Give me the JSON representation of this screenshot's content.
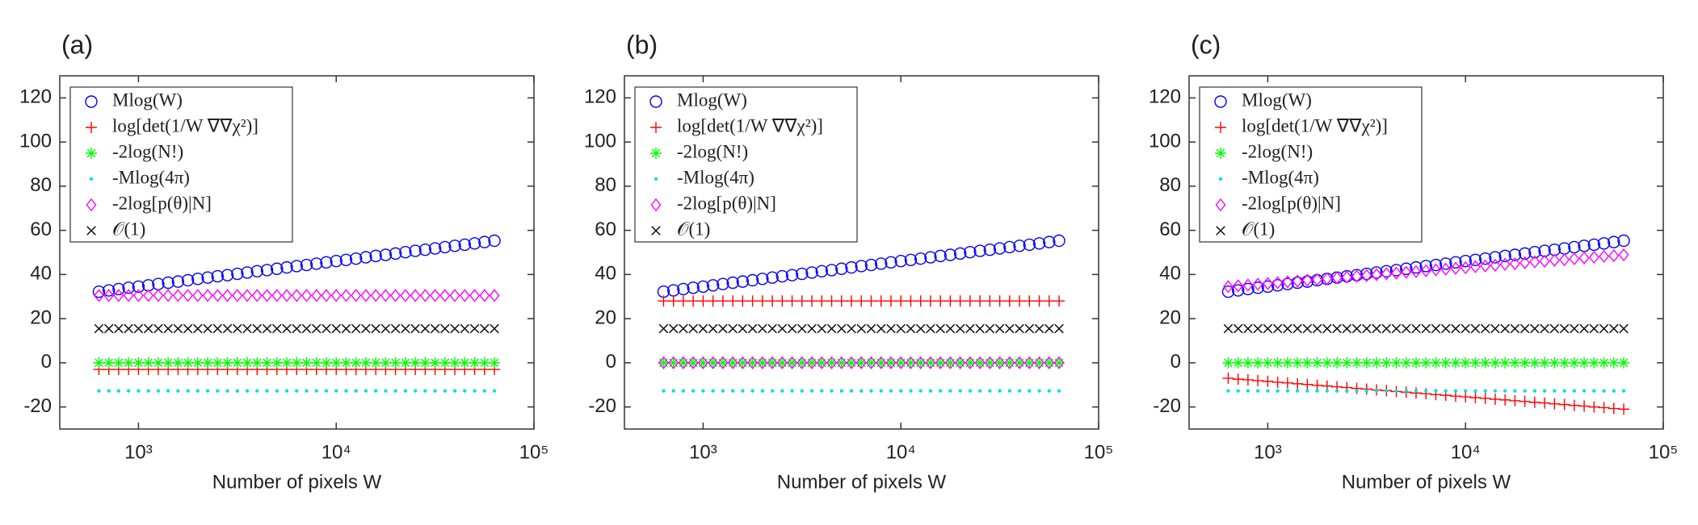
{
  "chart_data": [
    {
      "type": "scatter",
      "title": "(a)",
      "xlabel": "Number of pixels W",
      "xscale": "log",
      "legend": "upper left",
      "xlim": [
        400,
        100000
      ],
      "ylim": [
        -30,
        130
      ],
      "xticks": [
        {
          "value": 1000,
          "label": "10³"
        },
        {
          "value": 10000,
          "label": "10⁴"
        },
        {
          "value": 100000,
          "label": "10⁵"
        }
      ],
      "yticks": [
        -20,
        0,
        20,
        40,
        60,
        80,
        100,
        120
      ],
      "x": [
        631,
        708,
        794,
        891,
        1000,
        1122,
        1259,
        1413,
        1585,
        1778,
        1995,
        2239,
        2512,
        2818,
        3162,
        3548,
        3981,
        4467,
        5012,
        5623,
        6310,
        7079,
        7943,
        8913,
        10000,
        11220,
        12589,
        14125,
        15849,
        17783,
        19953,
        22387,
        25119,
        28184,
        31623,
        35481,
        39811,
        44668,
        50119,
        56234,
        63096
      ],
      "series": [
        {
          "name": "Mlog(W)",
          "color": "#0000ff",
          "marker": "circle",
          "values": [
            32.2,
            32.8,
            33.4,
            34.0,
            34.5,
            35.1,
            35.7,
            36.3,
            36.8,
            37.4,
            38.0,
            38.6,
            39.2,
            39.7,
            40.3,
            40.9,
            41.5,
            42.0,
            42.6,
            43.2,
            43.8,
            44.3,
            44.9,
            45.5,
            46.1,
            46.6,
            47.2,
            47.8,
            48.4,
            48.9,
            49.5,
            50.1,
            50.7,
            51.2,
            51.8,
            52.4,
            53.0,
            53.5,
            54.1,
            54.7,
            55.3
          ]
        },
        {
          "name": "log[det(1/W ∇∇χ²)]",
          "color": "#ff0000",
          "marker": "plus",
          "values": [
            -3,
            -3,
            -3,
            -3,
            -3,
            -3,
            -3,
            -3,
            -3,
            -3,
            -3,
            -3,
            -3,
            -3,
            -3,
            -3,
            -3,
            -3,
            -3,
            -3,
            -3,
            -3,
            -3,
            -3,
            -3,
            -3,
            -3,
            -3,
            -3,
            -3,
            -3,
            -3,
            -3,
            -3,
            -3,
            -3,
            -3,
            -3,
            -3,
            -3,
            -3
          ]
        },
        {
          "name": "-2log(N!)",
          "color": "#00ff00",
          "marker": "star",
          "values": [
            0,
            0,
            0,
            0,
            0,
            0,
            0,
            0,
            0,
            0,
            0,
            0,
            0,
            0,
            0,
            0,
            0,
            0,
            0,
            0,
            0,
            0,
            0,
            0,
            0,
            0,
            0,
            0,
            0,
            0,
            0,
            0,
            0,
            0,
            0,
            0,
            0,
            0,
            0,
            0,
            0
          ]
        },
        {
          "name": "-Mlog(4π)",
          "color": "#00e0e0",
          "marker": "dot",
          "values": [
            -12.7,
            -12.7,
            -12.7,
            -12.7,
            -12.7,
            -12.7,
            -12.7,
            -12.7,
            -12.7,
            -12.7,
            -12.7,
            -12.7,
            -12.7,
            -12.7,
            -12.7,
            -12.7,
            -12.7,
            -12.7,
            -12.7,
            -12.7,
            -12.7,
            -12.7,
            -12.7,
            -12.7,
            -12.7,
            -12.7,
            -12.7,
            -12.7,
            -12.7,
            -12.7,
            -12.7,
            -12.7,
            -12.7,
            -12.7,
            -12.7,
            -12.7,
            -12.7,
            -12.7,
            -12.7,
            -12.7,
            -12.7
          ]
        },
        {
          "name": "-2log[p(θ)|N]",
          "color": "#ff00ff",
          "marker": "diamond",
          "values": [
            30.5,
            30.5,
            30.5,
            30.5,
            30.5,
            30.5,
            30.5,
            30.5,
            30.5,
            30.5,
            30.5,
            30.5,
            30.5,
            30.5,
            30.5,
            30.5,
            30.5,
            30.5,
            30.5,
            30.5,
            30.5,
            30.5,
            30.5,
            30.5,
            30.5,
            30.5,
            30.5,
            30.5,
            30.5,
            30.5,
            30.5,
            30.5,
            30.5,
            30.5,
            30.5,
            30.5,
            30.5,
            30.5,
            30.5,
            30.5,
            30.5
          ]
        },
        {
          "name": "𝒪(1)",
          "color": "#000000",
          "marker": "cross",
          "values": [
            15.5,
            15.5,
            15.5,
            15.5,
            15.5,
            15.5,
            15.5,
            15.5,
            15.5,
            15.5,
            15.5,
            15.5,
            15.5,
            15.5,
            15.5,
            15.5,
            15.5,
            15.5,
            15.5,
            15.5,
            15.5,
            15.5,
            15.5,
            15.5,
            15.5,
            15.5,
            15.5,
            15.5,
            15.5,
            15.5,
            15.5,
            15.5,
            15.5,
            15.5,
            15.5,
            15.5,
            15.5,
            15.5,
            15.5,
            15.5,
            15.5
          ]
        }
      ]
    },
    {
      "type": "scatter",
      "title": "(b)",
      "xlabel": "Number of pixels W",
      "xscale": "log",
      "legend": "upper left",
      "xlim": [
        400,
        100000
      ],
      "ylim": [
        -30,
        130
      ],
      "xticks": [
        {
          "value": 1000,
          "label": "10³"
        },
        {
          "value": 10000,
          "label": "10⁴"
        },
        {
          "value": 100000,
          "label": "10⁵"
        }
      ],
      "yticks": [
        -20,
        0,
        20,
        40,
        60,
        80,
        100,
        120
      ],
      "x": [
        631,
        708,
        794,
        891,
        1000,
        1122,
        1259,
        1413,
        1585,
        1778,
        1995,
        2239,
        2512,
        2818,
        3162,
        3548,
        3981,
        4467,
        5012,
        5623,
        6310,
        7079,
        7943,
        8913,
        10000,
        11220,
        12589,
        14125,
        15849,
        17783,
        19953,
        22387,
        25119,
        28184,
        31623,
        35481,
        39811,
        44668,
        50119,
        56234,
        63096
      ],
      "series": [
        {
          "name": "Mlog(W)",
          "color": "#0000ff",
          "marker": "circle",
          "values": [
            32.2,
            32.8,
            33.4,
            34.0,
            34.5,
            35.1,
            35.7,
            36.3,
            36.8,
            37.4,
            38.0,
            38.6,
            39.2,
            39.7,
            40.3,
            40.9,
            41.5,
            42.0,
            42.6,
            43.2,
            43.8,
            44.3,
            44.9,
            45.5,
            46.1,
            46.6,
            47.2,
            47.8,
            48.4,
            48.9,
            49.5,
            50.1,
            50.7,
            51.2,
            51.8,
            52.4,
            53.0,
            53.5,
            54.1,
            54.7,
            55.3
          ]
        },
        {
          "name": "log[det(1/W ∇∇χ²)]",
          "color": "#ff0000",
          "marker": "plus",
          "values": [
            28,
            28,
            28,
            28,
            28,
            28,
            28,
            28,
            28,
            28,
            28,
            28,
            28,
            28,
            28,
            28,
            28,
            28,
            28,
            28,
            28,
            28,
            28,
            28,
            28,
            28,
            28,
            28,
            28,
            28,
            28,
            28,
            28,
            28,
            28,
            28,
            28,
            28,
            28,
            28,
            28
          ]
        },
        {
          "name": "-2log(N!)",
          "color": "#00ff00",
          "marker": "star",
          "values": [
            0,
            0,
            0,
            0,
            0,
            0,
            0,
            0,
            0,
            0,
            0,
            0,
            0,
            0,
            0,
            0,
            0,
            0,
            0,
            0,
            0,
            0,
            0,
            0,
            0,
            0,
            0,
            0,
            0,
            0,
            0,
            0,
            0,
            0,
            0,
            0,
            0,
            0,
            0,
            0,
            0
          ]
        },
        {
          "name": "-Mlog(4π)",
          "color": "#00e0e0",
          "marker": "dot",
          "values": [
            -12.7,
            -12.7,
            -12.7,
            -12.7,
            -12.7,
            -12.7,
            -12.7,
            -12.7,
            -12.7,
            -12.7,
            -12.7,
            -12.7,
            -12.7,
            -12.7,
            -12.7,
            -12.7,
            -12.7,
            -12.7,
            -12.7,
            -12.7,
            -12.7,
            -12.7,
            -12.7,
            -12.7,
            -12.7,
            -12.7,
            -12.7,
            -12.7,
            -12.7,
            -12.7,
            -12.7,
            -12.7,
            -12.7,
            -12.7,
            -12.7,
            -12.7,
            -12.7,
            -12.7,
            -12.7,
            -12.7,
            -12.7
          ]
        },
        {
          "name": "-2log[p(θ)|N]",
          "color": "#ff00ff",
          "marker": "diamond",
          "values": [
            0,
            0,
            0,
            0,
            0,
            0,
            0,
            0,
            0,
            0,
            0,
            0,
            0,
            0,
            0,
            0,
            0,
            0,
            0,
            0,
            0,
            0,
            0,
            0,
            0,
            0,
            0,
            0,
            0,
            0,
            0,
            0,
            0,
            0,
            0,
            0,
            0,
            0,
            0,
            0,
            0
          ]
        },
        {
          "name": "𝒪(1)",
          "color": "#000000",
          "marker": "cross",
          "values": [
            15.5,
            15.5,
            15.5,
            15.5,
            15.5,
            15.5,
            15.5,
            15.5,
            15.5,
            15.5,
            15.5,
            15.5,
            15.5,
            15.5,
            15.5,
            15.5,
            15.5,
            15.5,
            15.5,
            15.5,
            15.5,
            15.5,
            15.5,
            15.5,
            15.5,
            15.5,
            15.5,
            15.5,
            15.5,
            15.5,
            15.5,
            15.5,
            15.5,
            15.5,
            15.5,
            15.5,
            15.5,
            15.5,
            15.5,
            15.5,
            15.5
          ]
        }
      ]
    },
    {
      "type": "scatter",
      "title": "(c)",
      "xlabel": "Number of pixels W",
      "xscale": "log",
      "legend": "upper left",
      "xlim": [
        400,
        100000
      ],
      "ylim": [
        -30,
        130
      ],
      "xticks": [
        {
          "value": 1000,
          "label": "10³"
        },
        {
          "value": 10000,
          "label": "10⁴"
        },
        {
          "value": 100000,
          "label": "10⁵"
        }
      ],
      "yticks": [
        -20,
        0,
        20,
        40,
        60,
        80,
        100,
        120
      ],
      "x": [
        631,
        708,
        794,
        891,
        1000,
        1122,
        1259,
        1413,
        1585,
        1778,
        1995,
        2239,
        2512,
        2818,
        3162,
        3548,
        3981,
        4467,
        5012,
        5623,
        6310,
        7079,
        7943,
        8913,
        10000,
        11220,
        12589,
        14125,
        15849,
        17783,
        19953,
        22387,
        25119,
        28184,
        31623,
        35481,
        39811,
        44668,
        50119,
        56234,
        63096
      ],
      "series": [
        {
          "name": "Mlog(W)",
          "color": "#0000ff",
          "marker": "circle",
          "values": [
            32.2,
            32.8,
            33.4,
            34.0,
            34.5,
            35.1,
            35.7,
            36.3,
            36.8,
            37.4,
            38.0,
            38.6,
            39.2,
            39.7,
            40.3,
            40.9,
            41.5,
            42.0,
            42.6,
            43.2,
            43.8,
            44.3,
            44.9,
            45.5,
            46.1,
            46.6,
            47.2,
            47.8,
            48.4,
            48.9,
            49.5,
            50.1,
            50.7,
            51.2,
            51.8,
            52.4,
            53.0,
            53.5,
            54.1,
            54.7,
            55.3
          ]
        },
        {
          "name": "log[det(1/W ∇∇χ²)]",
          "color": "#ff0000",
          "marker": "plus",
          "values": [
            -7.0,
            -7.4,
            -7.7,
            -8.1,
            -8.4,
            -8.8,
            -9.1,
            -9.5,
            -9.8,
            -10.2,
            -10.5,
            -10.9,
            -11.2,
            -11.6,
            -11.9,
            -12.3,
            -12.6,
            -13.0,
            -13.3,
            -13.7,
            -14.0,
            -14.4,
            -14.7,
            -15.1,
            -15.4,
            -15.8,
            -16.1,
            -16.5,
            -16.8,
            -17.2,
            -17.5,
            -17.9,
            -18.2,
            -18.6,
            -18.9,
            -19.3,
            -19.6,
            -20.0,
            -20.3,
            -20.7,
            -21.0
          ]
        },
        {
          "name": "-2log(N!)",
          "color": "#00ff00",
          "marker": "star",
          "values": [
            0,
            0,
            0,
            0,
            0,
            0,
            0,
            0,
            0,
            0,
            0,
            0,
            0,
            0,
            0,
            0,
            0,
            0,
            0,
            0,
            0,
            0,
            0,
            0,
            0,
            0,
            0,
            0,
            0,
            0,
            0,
            0,
            0,
            0,
            0,
            0,
            0,
            0,
            0,
            0,
            0
          ]
        },
        {
          "name": "-Mlog(4π)",
          "color": "#00e0e0",
          "marker": "dot",
          "values": [
            -12.7,
            -12.7,
            -12.7,
            -12.7,
            -12.7,
            -12.7,
            -12.7,
            -12.7,
            -12.7,
            -12.7,
            -12.7,
            -12.7,
            -12.7,
            -12.7,
            -12.7,
            -12.7,
            -12.7,
            -12.7,
            -12.7,
            -12.7,
            -12.7,
            -12.7,
            -12.7,
            -12.7,
            -12.7,
            -12.7,
            -12.7,
            -12.7,
            -12.7,
            -12.7,
            -12.7,
            -12.7,
            -12.7,
            -12.7,
            -12.7,
            -12.7,
            -12.7,
            -12.7,
            -12.7,
            -12.7,
            -12.7
          ]
        },
        {
          "name": "-2log[p(θ)|N]",
          "color": "#ff00ff",
          "marker": "diamond",
          "values": [
            34.5,
            34.9,
            35.2,
            35.6,
            35.9,
            36.3,
            36.7,
            37.0,
            37.4,
            37.7,
            38.1,
            38.5,
            38.8,
            39.2,
            39.5,
            39.9,
            40.3,
            40.6,
            41.0,
            41.3,
            41.7,
            42.1,
            42.4,
            42.8,
            43.1,
            43.5,
            43.9,
            44.2,
            44.6,
            44.9,
            45.3,
            45.7,
            46.0,
            46.4,
            46.7,
            47.1,
            47.5,
            47.8,
            48.2,
            48.5,
            48.9
          ]
        },
        {
          "name": "𝒪(1)",
          "color": "#000000",
          "marker": "cross",
          "values": [
            15.5,
            15.5,
            15.5,
            15.5,
            15.5,
            15.5,
            15.5,
            15.5,
            15.5,
            15.5,
            15.5,
            15.5,
            15.5,
            15.5,
            15.5,
            15.5,
            15.5,
            15.5,
            15.5,
            15.5,
            15.5,
            15.5,
            15.5,
            15.5,
            15.5,
            15.5,
            15.5,
            15.5,
            15.5,
            15.5,
            15.5,
            15.5,
            15.5,
            15.5,
            15.5,
            15.5,
            15.5,
            15.5,
            15.5,
            15.5,
            15.5
          ]
        }
      ]
    }
  ]
}
